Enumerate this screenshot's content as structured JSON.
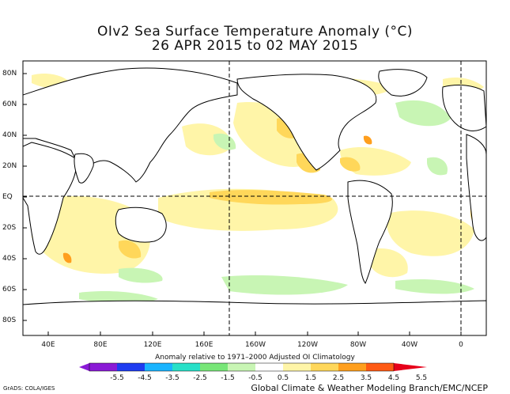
{
  "title": {
    "line1": "OIv2 Sea Surface Temperature Anomaly (°C)",
    "line2": "26 APR 2015 to 02 MAY 2015"
  },
  "lat_labels": [
    "80N",
    "60N",
    "40N",
    "20N",
    "EQ",
    "20S",
    "40S",
    "60S",
    "80S"
  ],
  "lon_labels": [
    "40E",
    "80E",
    "120E",
    "160E",
    "160W",
    "120W",
    "80W",
    "40W",
    "0"
  ],
  "colorbar": {
    "note": "Anomaly relative to 1971–2000 Adjusted OI Climatology",
    "labels": [
      "-5.5",
      "-4.5",
      "-3.5",
      "-2.5",
      "-1.5",
      "-0.5",
      "0.5",
      "1.5",
      "2.5",
      "3.5",
      "4.5",
      "5.5"
    ],
    "colors": [
      "#8a1ad6",
      "#1f3cf0",
      "#1ab4ff",
      "#28e0c8",
      "#78e678",
      "#c8f5b4",
      "#ffffff",
      "#fff5a8",
      "#ffd75a",
      "#ff9f1e",
      "#ff5a14",
      "#e6001a"
    ]
  },
  "credits": {
    "left": "GrADS: COLA/IGES",
    "right": "Global Climate & Weather Modeling Branch/EMC/NCEP"
  }
}
